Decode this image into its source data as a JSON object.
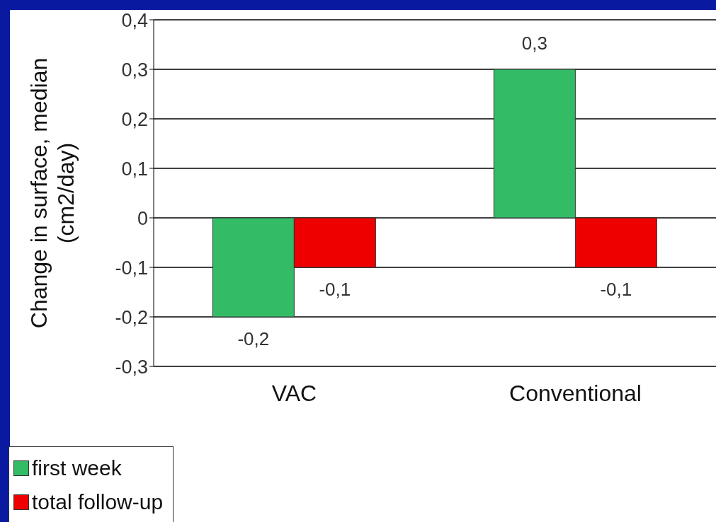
{
  "chart_data": {
    "type": "bar",
    "ylabel": "Change in surface, median\n(cm2/day)",
    "categories": [
      "VAC",
      "Conventional"
    ],
    "series": [
      {
        "name": "first week",
        "color": "#33bb66",
        "values": [
          -0.2,
          0.3
        ],
        "value_labels": [
          "-0,2",
          "0,3"
        ]
      },
      {
        "name": "total follow-up",
        "color": "#ee0000",
        "values": [
          -0.1,
          -0.1
        ],
        "value_labels": [
          "-0,1",
          "-0,1"
        ]
      }
    ],
    "ylim": [
      -0.3,
      0.4
    ],
    "yticks": [
      {
        "value": -0.3,
        "label": "-0,3"
      },
      {
        "value": -0.2,
        "label": "-0,2"
      },
      {
        "value": -0.1,
        "label": "-0,1"
      },
      0,
      {
        "value": 0.1,
        "label": "0,1"
      },
      {
        "value": 0.2,
        "label": "0,2"
      },
      {
        "value": 0.3,
        "label": "0,3"
      },
      {
        "value": 0.4,
        "label": "0,4"
      }
    ],
    "grid": "y",
    "legend": "bottom left"
  }
}
